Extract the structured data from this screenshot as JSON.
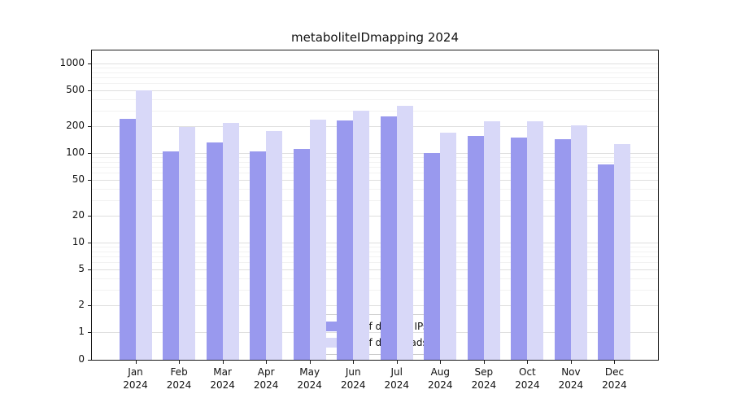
{
  "chart_data": {
    "type": "bar",
    "title": "metaboliteIDmapping 2024",
    "categories": [
      "Jan 2024",
      "Feb 2024",
      "Mar 2024",
      "Apr 2024",
      "May 2024",
      "Jun 2024",
      "Jul 2024",
      "Aug 2024",
      "Sep 2024",
      "Oct 2024",
      "Nov 2024",
      "Dec 2024"
    ],
    "series": [
      {
        "key": "ips",
        "name": "Nb of distinct IPs",
        "color": "#9999ee",
        "values": [
          240,
          105,
          130,
          105,
          110,
          230,
          255,
          100,
          155,
          150,
          142,
          75
        ]
      },
      {
        "key": "downloads",
        "name": "Nb of downloads",
        "color": "#d8d8f8",
        "values": [
          500,
          195,
          215,
          175,
          235,
          300,
          335,
          170,
          225,
          225,
          205,
          125
        ]
      }
    ],
    "yscale": "symlog",
    "yticks": [
      0,
      1,
      2,
      5,
      10,
      20,
      50,
      100,
      200,
      500,
      1000
    ],
    "yticks_minor": [
      3,
      4,
      6,
      7,
      8,
      9,
      30,
      40,
      60,
      70,
      80,
      90,
      300,
      400,
      600,
      700,
      800,
      900
    ],
    "ylim": [
      0,
      1400
    ],
    "xlabel": "",
    "ylabel": "",
    "grid": true,
    "legend_position": "lower center"
  }
}
